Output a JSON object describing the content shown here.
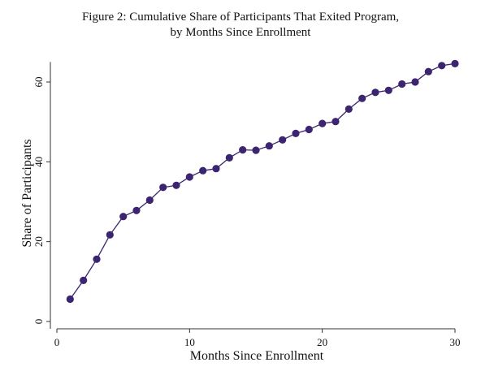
{
  "chart_data": {
    "type": "line",
    "title": "Figure 2: Cumulative Share of Participants That Exited Program,",
    "subtitle": "by Months Since Enrollment",
    "xlabel": "Months Since Enrollment",
    "ylabel": "Share of Participants",
    "xlim": [
      0,
      30
    ],
    "ylim": [
      0,
      65
    ],
    "x_ticks": [
      0,
      10,
      20,
      30
    ],
    "y_ticks": [
      0,
      20,
      40,
      60
    ],
    "grid": false,
    "color": "#3b2470",
    "x": [
      1,
      2,
      3,
      4,
      5,
      6,
      7,
      8,
      9,
      10,
      11,
      12,
      13,
      14,
      15,
      16,
      17,
      18,
      19,
      20,
      21,
      22,
      23,
      24,
      25,
      26,
      27,
      28,
      29,
      30
    ],
    "y": [
      5.6,
      10.3,
      15.6,
      21.7,
      26.3,
      27.8,
      30.4,
      33.6,
      34.1,
      36.2,
      37.8,
      38.3,
      41.0,
      43.0,
      42.9,
      44.0,
      45.5,
      47.1,
      48.1,
      49.6,
      50.1,
      53.2,
      55.9,
      57.4,
      57.9,
      59.5,
      60.0,
      62.6,
      64.1,
      64.6
    ]
  }
}
